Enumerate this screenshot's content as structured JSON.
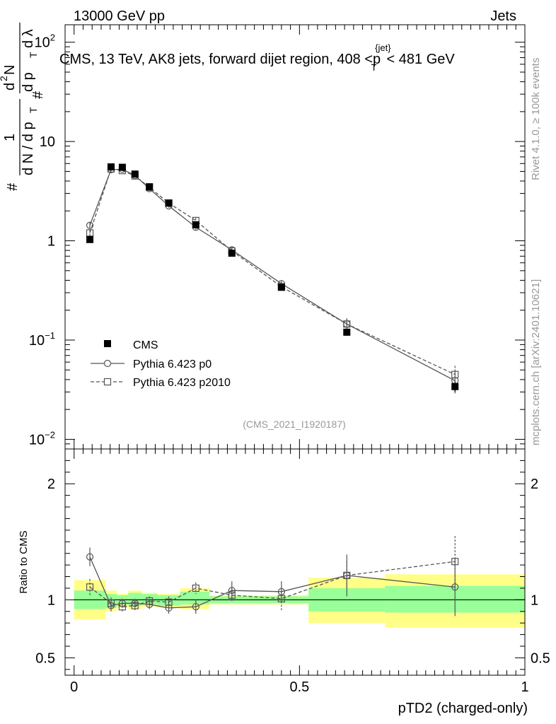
{
  "header": {
    "left": "13000 GeV pp",
    "right": "Jets"
  },
  "side_labels": {
    "rivet": "Rivet 4.1.0, ≥ 100k events",
    "mcplots": "mcplots.cern.ch [arXiv:2401.10621]"
  },
  "colors": {
    "cms": "#000000",
    "p0": "#555555",
    "p2010": "#555555",
    "band_inner": "#99ff99",
    "band_outer": "#ffff88",
    "analysis_id": "#999999"
  },
  "chart_data": [
    {
      "type": "scatter",
      "title": "CMS, 13 TeV, AK8 jets, forward dijet region, 408 <p_T^{jet}< 481 GeV",
      "title_parts": {
        "main": "CMS, 13 TeV, AK8 jets, forward dijet region, 408 <p",
        "sup": "{jet}",
        "sub": "T",
        "tail": "< 481 GeV"
      },
      "ylabel": "1/(dN/dp_T) d²N/(dp_T dλ)",
      "ylabel_parts": [
        "#",
        "1",
        "d N / d p",
        "T",
        "#",
        "d",
        "2",
        "N",
        "d p",
        "T",
        "d λ"
      ],
      "yscale": "log",
      "ylim": [
        0.008,
        150
      ],
      "xlim": [
        -0.02,
        1.0
      ],
      "analysis_id": "(CMS_2021_I1920187)",
      "y_ticks": [
        {
          "v": 0.01,
          "base": "10",
          "exp": "−2"
        },
        {
          "v": 0.1,
          "base": "10",
          "exp": "−1"
        },
        {
          "v": 1,
          "base": "1",
          "exp": ""
        },
        {
          "v": 10,
          "base": "10",
          "exp": ""
        },
        {
          "v": 100,
          "base": "10",
          "exp": "2"
        }
      ],
      "x_bins": [
        {
          "lo": 0.0,
          "hi": 0.07,
          "x": 0.035
        },
        {
          "lo": 0.07,
          "hi": 0.095,
          "x": 0.082
        },
        {
          "lo": 0.095,
          "hi": 0.12,
          "x": 0.107
        },
        {
          "lo": 0.12,
          "hi": 0.15,
          "x": 0.135
        },
        {
          "lo": 0.15,
          "hi": 0.185,
          "x": 0.167
        },
        {
          "lo": 0.185,
          "hi": 0.235,
          "x": 0.21
        },
        {
          "lo": 0.235,
          "hi": 0.3,
          "x": 0.27
        },
        {
          "lo": 0.3,
          "hi": 0.38,
          "x": 0.35
        },
        {
          "lo": 0.38,
          "hi": 0.52,
          "x": 0.46
        },
        {
          "lo": 0.52,
          "hi": 0.69,
          "x": 0.605
        },
        {
          "lo": 0.69,
          "hi": 1.0,
          "x": 0.845
        }
      ],
      "series": [
        {
          "name": "CMS",
          "key": "cms",
          "marker": "filled-square",
          "values": [
            1.03,
            5.55,
            5.5,
            4.7,
            3.5,
            2.4,
            1.45,
            0.75,
            0.34,
            0.12,
            0.034
          ],
          "err_up": [
            0.06,
            0.2,
            0.2,
            0.15,
            0.12,
            0.08,
            0.06,
            0.03,
            0.015,
            0.008,
            0.004
          ],
          "err_dn": [
            0.06,
            0.2,
            0.2,
            0.15,
            0.12,
            0.08,
            0.06,
            0.03,
            0.015,
            0.008,
            0.004
          ]
        },
        {
          "name": "Pythia 6.423 p0",
          "key": "p0",
          "marker": "open-circle",
          "line": "solid",
          "values": [
            1.43,
            5.2,
            5.25,
            4.55,
            3.35,
            2.25,
            1.37,
            0.81,
            0.37,
            0.145,
            0.039
          ],
          "err_up": [
            0.09,
            0.2,
            0.2,
            0.18,
            0.15,
            0.1,
            0.08,
            0.05,
            0.03,
            0.02,
            0.01
          ],
          "err_dn": [
            0.09,
            0.2,
            0.2,
            0.18,
            0.15,
            0.1,
            0.08,
            0.05,
            0.03,
            0.02,
            0.01
          ]
        },
        {
          "name": "Pythia 6.423 p2010",
          "key": "p2010",
          "marker": "open-square",
          "line": "dashed",
          "values": [
            1.2,
            5.3,
            5.1,
            4.5,
            3.45,
            2.4,
            1.6,
            0.79,
            0.345,
            0.145,
            0.045
          ],
          "err_up": [
            0.08,
            0.2,
            0.2,
            0.18,
            0.15,
            0.1,
            0.1,
            0.05,
            0.03,
            0.02,
            0.01
          ],
          "err_dn": [
            0.08,
            0.2,
            0.2,
            0.18,
            0.15,
            0.1,
            0.1,
            0.05,
            0.03,
            0.02,
            0.01
          ]
        }
      ]
    },
    {
      "type": "scatter",
      "ylabel": "Ratio to CMS",
      "xlabel": "pTD2 (charged-only)",
      "ylim": [
        0.35,
        2.3
      ],
      "xlim": [
        -0.02,
        1.0
      ],
      "y_ticks": [
        {
          "v": 0.5,
          "label": "0.5"
        },
        {
          "v": 1,
          "label": "1"
        },
        {
          "v": 2,
          "label": "2"
        }
      ],
      "x_ticks": [
        {
          "v": 0,
          "label": "0"
        },
        {
          "v": 0.5,
          "label": "0.5"
        },
        {
          "v": 1,
          "label": "1"
        }
      ],
      "band_inner": [
        [
          0.92,
          1.08
        ],
        [
          0.93,
          1.05
        ],
        [
          0.96,
          1.04
        ],
        [
          0.95,
          1.06
        ],
        [
          0.96,
          1.05
        ],
        [
          0.95,
          1.04
        ],
        [
          0.96,
          1.07
        ],
        [
          0.97,
          1.03
        ],
        [
          0.97,
          1.03
        ],
        [
          0.9,
          1.1
        ],
        [
          0.89,
          1.12
        ]
      ],
      "band_outer": [
        [
          0.83,
          1.17
        ],
        [
          0.9,
          1.08
        ],
        [
          0.93,
          1.05
        ],
        [
          0.92,
          1.08
        ],
        [
          0.94,
          1.06
        ],
        [
          0.93,
          1.05
        ],
        [
          0.92,
          1.1
        ],
        [
          0.96,
          1.04
        ],
        [
          0.96,
          1.04
        ],
        [
          0.8,
          1.19
        ],
        [
          0.76,
          1.22
        ]
      ],
      "series": [
        {
          "name": "Pythia 6.423 p0",
          "key": "p0",
          "marker": "open-circle",
          "line": "solid",
          "values": [
            1.37,
            0.95,
            0.97,
            0.97,
            0.96,
            0.93,
            0.94,
            1.08,
            1.07,
            1.21,
            1.11
          ],
          "err_up": [
            0.08,
            0.05,
            0.04,
            0.04,
            0.04,
            0.05,
            0.06,
            0.08,
            0.09,
            0.18,
            0.25
          ],
          "err_dn": [
            0.08,
            0.05,
            0.04,
            0.04,
            0.04,
            0.05,
            0.06,
            0.08,
            0.09,
            0.18,
            0.25
          ]
        },
        {
          "name": "Pythia 6.423 p2010",
          "key": "p2010",
          "marker": "open-square",
          "line": "dashed",
          "values": [
            1.11,
            0.97,
            0.94,
            0.95,
            0.99,
            0.98,
            1.1,
            1.04,
            1.01,
            1.21,
            1.33
          ],
          "err_up": [
            0.07,
            0.05,
            0.04,
            0.04,
            0.04,
            0.05,
            0.05,
            0.06,
            0.1,
            0.12,
            0.22
          ],
          "err_dn": [
            0.07,
            0.05,
            0.04,
            0.04,
            0.04,
            0.05,
            0.05,
            0.06,
            0.1,
            0.12,
            0.22
          ]
        }
      ]
    }
  ]
}
